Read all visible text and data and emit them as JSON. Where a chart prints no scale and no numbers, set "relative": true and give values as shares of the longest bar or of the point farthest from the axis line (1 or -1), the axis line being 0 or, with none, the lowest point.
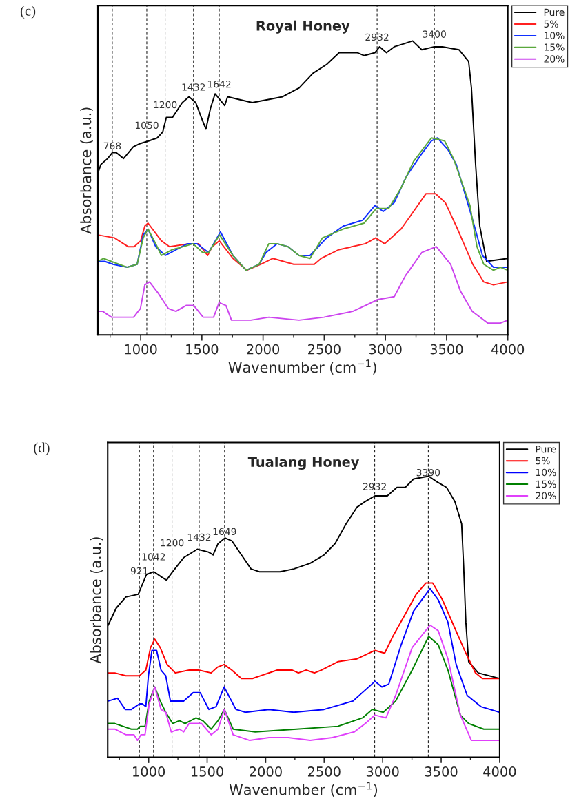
{
  "chart_data": [
    {
      "type": "line",
      "title": "Royal Honey",
      "xlabel": "Wavenumber (cm$^{−1}$)",
      "ylabel": "Absorbance (a.u.)",
      "relative": true,
      "xlim": [
        650,
        4000
      ],
      "xticks": [
        1000,
        1500,
        2000,
        2500,
        3000,
        3500,
        4000
      ],
      "legend": "top right",
      "line_style": "solid",
      "marker": "none",
      "grid": false,
      "series": [
        {
          "name": "Pure",
          "color": "#000000",
          "x": [
            650,
            675,
            730,
            768,
            800,
            860,
            940,
            990,
            1068,
            1135,
            1180,
            1210,
            1260,
            1340,
            1395,
            1450,
            1495,
            1533,
            1570,
            1608,
            1687,
            1710,
            1912,
            2160,
            2295,
            2408,
            2520,
            2622,
            2768,
            2825,
            2915,
            2953,
            3009,
            3072,
            3150,
            3222,
            3297,
            3399,
            3466,
            3601,
            3680,
            3703,
            3737,
            3771,
            3827,
            4000
          ],
          "values": [
            0.55,
            0.58,
            0.6,
            0.62,
            0.62,
            0.6,
            0.64,
            0.65,
            0.66,
            0.67,
            0.69,
            0.74,
            0.74,
            0.79,
            0.81,
            0.79,
            0.74,
            0.7,
            0.77,
            0.82,
            0.78,
            0.81,
            0.79,
            0.81,
            0.84,
            0.89,
            0.92,
            0.96,
            0.96,
            0.95,
            0.96,
            0.98,
            0.96,
            0.98,
            0.99,
            1.0,
            0.97,
            0.98,
            0.98,
            0.97,
            0.93,
            0.84,
            0.58,
            0.37,
            0.25,
            0.26
          ]
        },
        {
          "name": "5%",
          "color": "#ff2020",
          "x": [
            650,
            785,
            897,
            947,
            1000,
            1034,
            1060,
            1169,
            1236,
            1394,
            1473,
            1547,
            1585,
            1642,
            1754,
            1867,
            1980,
            2081,
            2250,
            2419,
            2475,
            2621,
            2836,
            2921,
            2993,
            3128,
            3230,
            3331,
            3410,
            3489,
            3579,
            3714,
            3804,
            3883,
            4000
          ],
          "values": [
            0.34,
            0.33,
            0.3,
            0.3,
            0.32,
            0.37,
            0.38,
            0.32,
            0.3,
            0.31,
            0.31,
            0.27,
            0.3,
            0.32,
            0.26,
            0.22,
            0.24,
            0.26,
            0.24,
            0.24,
            0.26,
            0.29,
            0.31,
            0.33,
            0.31,
            0.36,
            0.42,
            0.48,
            0.48,
            0.45,
            0.37,
            0.24,
            0.18,
            0.17,
            0.18
          ]
        },
        {
          "name": "10%",
          "color": "#1030ff",
          "x": [
            650,
            706,
            773,
            890,
            971,
            1021,
            1060,
            1123,
            1202,
            1382,
            1461,
            1555,
            1652,
            1754,
            1862,
            1968,
            2024,
            2114,
            2204,
            2294,
            2384,
            2520,
            2655,
            2813,
            2914,
            2982,
            3072,
            3173,
            3286,
            3376,
            3425,
            3511,
            3579,
            3714,
            3793,
            3883,
            4000
          ],
          "values": [
            0.25,
            0.25,
            0.24,
            0.23,
            0.24,
            0.34,
            0.36,
            0.3,
            0.27,
            0.31,
            0.31,
            0.28,
            0.35,
            0.27,
            0.22,
            0.24,
            0.28,
            0.31,
            0.3,
            0.27,
            0.27,
            0.33,
            0.37,
            0.39,
            0.44,
            0.42,
            0.45,
            0.54,
            0.61,
            0.66,
            0.67,
            0.63,
            0.58,
            0.39,
            0.27,
            0.23,
            0.23
          ]
        },
        {
          "name": "15%",
          "color": "#5aa83c",
          "x": [
            650,
            695,
            890,
            971,
            1021,
            1060,
            1123,
            1169,
            1259,
            1349,
            1428,
            1507,
            1555,
            1645,
            1754,
            1862,
            1968,
            2047,
            2114,
            2204,
            2294,
            2384,
            2486,
            2655,
            2825,
            2926,
            3027,
            3128,
            3230,
            3376,
            3484,
            3556,
            3691,
            3748,
            3804,
            3883,
            3939,
            4000
          ],
          "values": [
            0.25,
            0.26,
            0.23,
            0.24,
            0.33,
            0.36,
            0.31,
            0.27,
            0.29,
            0.3,
            0.31,
            0.28,
            0.28,
            0.34,
            0.27,
            0.22,
            0.24,
            0.31,
            0.31,
            0.3,
            0.27,
            0.26,
            0.33,
            0.36,
            0.38,
            0.43,
            0.43,
            0.5,
            0.59,
            0.67,
            0.66,
            0.6,
            0.44,
            0.3,
            0.24,
            0.22,
            0.23,
            0.22
          ]
        },
        {
          "name": "20%",
          "color": "#cc44ee",
          "x": [
            650,
            690,
            762,
            863,
            942,
            998,
            1034,
            1072,
            1146,
            1225,
            1288,
            1371,
            1434,
            1511,
            1596,
            1641,
            1697,
            1742,
            1900,
            2047,
            2294,
            2497,
            2733,
            2836,
            2937,
            3072,
            3162,
            3297,
            3416,
            3533,
            3612,
            3709,
            3837,
            3939,
            4000
          ],
          "values": [
            0.08,
            0.08,
            0.06,
            0.06,
            0.06,
            0.09,
            0.17,
            0.18,
            0.14,
            0.09,
            0.08,
            0.1,
            0.1,
            0.06,
            0.06,
            0.11,
            0.1,
            0.05,
            0.05,
            0.06,
            0.05,
            0.06,
            0.08,
            0.1,
            0.12,
            0.13,
            0.2,
            0.28,
            0.3,
            0.24,
            0.15,
            0.08,
            0.04,
            0.04,
            0.05
          ]
        }
      ],
      "ref_lines": [
        {
          "axis": "x",
          "value": 768,
          "color": "#000000",
          "line_style": "dashed"
        },
        {
          "axis": "x",
          "value": 1050,
          "color": "#000000",
          "line_style": "dashed"
        },
        {
          "axis": "x",
          "value": 1200,
          "color": "#000000",
          "line_style": "dashed"
        },
        {
          "axis": "x",
          "value": 1432,
          "color": "#000000",
          "line_style": "dashed"
        },
        {
          "axis": "x",
          "value": 1642,
          "color": "#000000",
          "line_style": "dashed"
        },
        {
          "axis": "x",
          "value": 2932,
          "color": "#000000",
          "line_style": "dashed"
        },
        {
          "axis": "x",
          "value": 3400,
          "color": "#000000",
          "line_style": "dashed"
        }
      ],
      "annotations": [
        "(c)",
        {
          "text": "768",
          "x": 768,
          "y": 0.64
        },
        {
          "text": "1050",
          "x": 1050,
          "y": 0.71
        },
        {
          "text": "1200",
          "x": 1200,
          "y": 0.78
        },
        {
          "text": "1432",
          "x": 1432,
          "y": 0.84
        },
        {
          "text": "1642",
          "x": 1642,
          "y": 0.85
        },
        {
          "text": "2932",
          "x": 2932,
          "y": 1.01
        },
        {
          "text": "3400",
          "x": 3400,
          "y": 1.02
        }
      ]
    },
    {
      "type": "line",
      "title": "Tualang Honey",
      "xlabel": "Wavenumber (cm$^{−1}$)",
      "ylabel": "Absorbance (a.u.)",
      "relative": true,
      "xlim": [
        650,
        4000
      ],
      "xticks": [
        1000,
        1500,
        2000,
        2500,
        3000,
        3500,
        4000
      ],
      "legend": "top right",
      "line_style": "solid",
      "marker": "none",
      "grid": false,
      "series": [
        {
          "name": "Pure",
          "color": "#000000",
          "x": [
            654,
            722,
            805,
            911,
            981,
            1045,
            1115,
            1153,
            1205,
            1299,
            1416,
            1511,
            1551,
            1593,
            1652,
            1711,
            1793,
            1875,
            1946,
            2122,
            2240,
            2381,
            2499,
            2593,
            2687,
            2781,
            2852,
            2934,
            3040,
            3122,
            3193,
            3264,
            3393,
            3464,
            3546,
            3617,
            3675,
            3692,
            3711,
            3735,
            3817,
            4000
          ],
          "values": [
            0.47,
            0.53,
            0.57,
            0.58,
            0.65,
            0.66,
            0.64,
            0.63,
            0.66,
            0.71,
            0.74,
            0.73,
            0.72,
            0.76,
            0.78,
            0.77,
            0.72,
            0.67,
            0.66,
            0.66,
            0.67,
            0.69,
            0.72,
            0.76,
            0.83,
            0.89,
            0.91,
            0.93,
            0.93,
            0.96,
            0.96,
            0.99,
            1.0,
            0.98,
            0.96,
            0.91,
            0.83,
            0.68,
            0.48,
            0.34,
            0.3,
            0.28
          ]
        },
        {
          "name": "5%",
          "color": "#ff0000",
          "x": [
            654,
            711,
            805,
            922,
            976,
            1016,
            1052,
            1099,
            1158,
            1228,
            1346,
            1428,
            1534,
            1586,
            1645,
            1711,
            1793,
            1887,
            1958,
            2099,
            2228,
            2280,
            2346,
            2417,
            2475,
            2617,
            2781,
            2934,
            3017,
            3087,
            3181,
            3287,
            3369,
            3428,
            3511,
            3605,
            3711,
            3793,
            3852,
            3922,
            4000
          ],
          "values": [
            0.3,
            0.3,
            0.29,
            0.29,
            0.31,
            0.39,
            0.42,
            0.39,
            0.33,
            0.3,
            0.31,
            0.31,
            0.3,
            0.32,
            0.33,
            0.31,
            0.28,
            0.28,
            0.29,
            0.31,
            0.31,
            0.3,
            0.31,
            0.3,
            0.31,
            0.34,
            0.35,
            0.38,
            0.37,
            0.43,
            0.5,
            0.58,
            0.62,
            0.62,
            0.56,
            0.47,
            0.37,
            0.3,
            0.28,
            0.28,
            0.28
          ]
        },
        {
          "name": "10%",
          "color": "#0000ff",
          "x": [
            654,
            734,
            800,
            852,
            922,
            946,
            976,
            998,
            1028,
            1068,
            1106,
            1146,
            1186,
            1299,
            1381,
            1440,
            1515,
            1576,
            1645,
            1746,
            1828,
            2028,
            2240,
            2499,
            2746,
            2934,
            2993,
            3052,
            3158,
            3264,
            3405,
            3475,
            3558,
            3628,
            3722,
            3840,
            4000
          ],
          "values": [
            0.2,
            0.21,
            0.17,
            0.17,
            0.19,
            0.19,
            0.18,
            0.29,
            0.38,
            0.38,
            0.31,
            0.29,
            0.2,
            0.2,
            0.23,
            0.23,
            0.17,
            0.18,
            0.25,
            0.17,
            0.16,
            0.17,
            0.16,
            0.17,
            0.2,
            0.27,
            0.25,
            0.26,
            0.4,
            0.52,
            0.6,
            0.56,
            0.48,
            0.33,
            0.22,
            0.18,
            0.16
          ]
        },
        {
          "name": "15%",
          "color": "#008000",
          "x": [
            654,
            711,
            781,
            852,
            904,
            929,
            969,
            1005,
            1052,
            1099,
            1146,
            1205,
            1264,
            1311,
            1405,
            1463,
            1534,
            1593,
            1647,
            1722,
            1911,
            2264,
            2617,
            2828,
            2911,
            3005,
            3111,
            3252,
            3393,
            3475,
            3558,
            3664,
            3735,
            3864,
            4000
          ],
          "values": [
            0.12,
            0.12,
            0.11,
            0.1,
            0.1,
            0.11,
            0.11,
            0.2,
            0.25,
            0.2,
            0.16,
            0.12,
            0.13,
            0.12,
            0.14,
            0.13,
            0.1,
            0.13,
            0.17,
            0.1,
            0.09,
            0.1,
            0.11,
            0.14,
            0.17,
            0.16,
            0.2,
            0.31,
            0.43,
            0.4,
            0.31,
            0.15,
            0.12,
            0.1,
            0.1
          ]
        },
        {
          "name": "20%",
          "color": "#e040fb",
          "x": [
            654,
            711,
            805,
            875,
            904,
            934,
            969,
            1005,
            1052,
            1106,
            1146,
            1193,
            1264,
            1299,
            1346,
            1452,
            1534,
            1593,
            1647,
            1722,
            1864,
            2028,
            2193,
            2381,
            2570,
            2758,
            2852,
            2934,
            3028,
            3111,
            3252,
            3405,
            3475,
            3558,
            3664,
            3758,
            4000
          ],
          "values": [
            0.1,
            0.1,
            0.08,
            0.08,
            0.06,
            0.08,
            0.08,
            0.19,
            0.25,
            0.17,
            0.16,
            0.09,
            0.1,
            0.09,
            0.12,
            0.12,
            0.08,
            0.1,
            0.17,
            0.08,
            0.06,
            0.07,
            0.07,
            0.06,
            0.07,
            0.09,
            0.12,
            0.15,
            0.14,
            0.22,
            0.39,
            0.47,
            0.45,
            0.35,
            0.15,
            0.06,
            0.06
          ]
        }
      ],
      "ref_lines": [
        {
          "axis": "x",
          "value": 921,
          "color": "#000000",
          "line_style": "dashed"
        },
        {
          "axis": "x",
          "value": 1042,
          "color": "#000000",
          "line_style": "dashed"
        },
        {
          "axis": "x",
          "value": 1200,
          "color": "#000000",
          "line_style": "dashed"
        },
        {
          "axis": "x",
          "value": 1432,
          "color": "#000000",
          "line_style": "dashed"
        },
        {
          "axis": "x",
          "value": 1649,
          "color": "#000000",
          "line_style": "dashed"
        },
        {
          "axis": "x",
          "value": 2932,
          "color": "#000000",
          "line_style": "dashed"
        },
        {
          "axis": "x",
          "value": 3390,
          "color": "#000000",
          "line_style": "dashed"
        }
      ],
      "annotations": [
        "(d)",
        {
          "text": "921",
          "x": 921,
          "y": 0.66
        },
        {
          "text": "1042",
          "x": 1042,
          "y": 0.71
        },
        {
          "text": "1200",
          "x": 1200,
          "y": 0.76
        },
        {
          "text": "1432",
          "x": 1432,
          "y": 0.78
        },
        {
          "text": "1649",
          "x": 1649,
          "y": 0.8
        },
        {
          "text": "2932",
          "x": 2932,
          "y": 0.96
        },
        {
          "text": "3390",
          "x": 3390,
          "y": 1.01
        }
      ]
    }
  ]
}
